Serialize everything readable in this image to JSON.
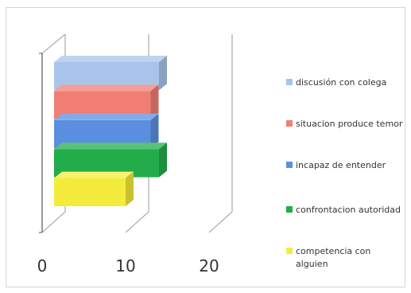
{
  "chart_data": {
    "type": "bar",
    "orientation": "horizontal",
    "three_d": true,
    "title": "",
    "xlabel": "",
    "ylabel": "",
    "xlim": [
      0,
      20
    ],
    "x_ticks": [
      "0",
      "10",
      "20"
    ],
    "grid": true,
    "legend_position": "right",
    "series": [
      {
        "name": "discusión con colega",
        "value": 14,
        "color": "#a9c4ea"
      },
      {
        "name": "situacion produce temor",
        "value": 13,
        "color": "#f07e74"
      },
      {
        "name": "incapaz de entender",
        "value": 13,
        "color": "#5a8fe0"
      },
      {
        "name": "confrontacion autoridad",
        "value": 14,
        "color": "#22ad4a"
      },
      {
        "name": "competencia con alguien",
        "value": 10,
        "color": "#f4ec3c"
      }
    ]
  }
}
